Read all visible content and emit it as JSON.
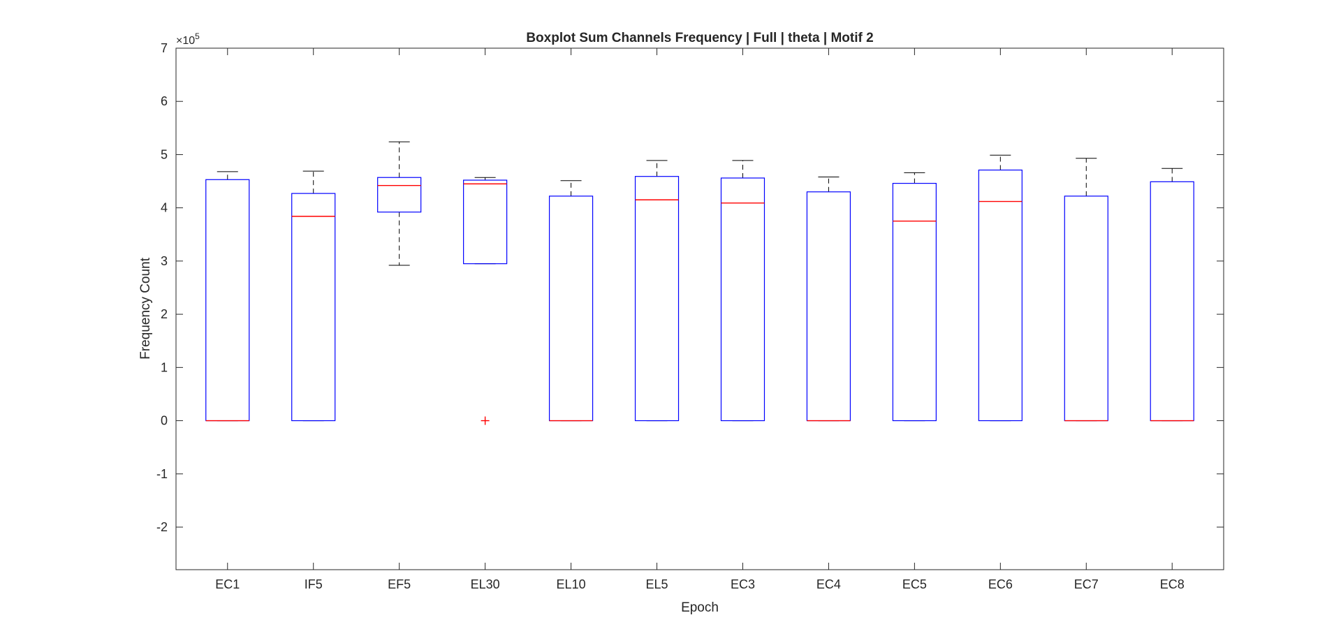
{
  "chart_data": {
    "type": "boxplot",
    "title": "Boxplot Sum Channels Frequency | Full | theta | Motif 2",
    "xlabel": "Epoch",
    "ylabel": "Frequency Count",
    "exponent_label": "×10",
    "exponent_power": "5",
    "y_scale": 100000,
    "ylim": [
      -2.8,
      7
    ],
    "yticks": [
      -2,
      -1,
      0,
      1,
      2,
      3,
      4,
      5,
      6,
      7
    ],
    "ytick_labels": [
      "-2",
      "-1",
      "0",
      "1",
      "2",
      "3",
      "4",
      "5",
      "6",
      "7"
    ],
    "grid": false,
    "categories": [
      "EC1",
      "IF5",
      "EF5",
      "EL30",
      "EL10",
      "EL5",
      "EC3",
      "EC4",
      "EC5",
      "EC6",
      "EC7",
      "EC8"
    ],
    "boxes": [
      {
        "q1": 0,
        "median": 0,
        "q3": 4.53,
        "whisker_low": 0,
        "whisker_high": 4.68,
        "outliers": []
      },
      {
        "q1": 0,
        "median": 3.84,
        "q3": 4.27,
        "whisker_low": 0,
        "whisker_high": 4.69,
        "outliers": []
      },
      {
        "q1": 3.92,
        "median": 4.42,
        "q3": 4.57,
        "whisker_low": 2.92,
        "whisker_high": 5.24,
        "outliers": []
      },
      {
        "q1": 2.95,
        "median": 4.45,
        "q3": 4.52,
        "whisker_low": 2.95,
        "whisker_high": 4.57,
        "outliers": [
          0
        ]
      },
      {
        "q1": 0,
        "median": 0,
        "q3": 4.22,
        "whisker_low": 0,
        "whisker_high": 4.51,
        "outliers": []
      },
      {
        "q1": 0,
        "median": 4.15,
        "q3": 4.59,
        "whisker_low": 0,
        "whisker_high": 4.89,
        "outliers": []
      },
      {
        "q1": 0,
        "median": 4.09,
        "q3": 4.56,
        "whisker_low": 0,
        "whisker_high": 4.89,
        "outliers": []
      },
      {
        "q1": 0,
        "median": 0,
        "q3": 4.3,
        "whisker_low": 0,
        "whisker_high": 4.58,
        "outliers": []
      },
      {
        "q1": 0,
        "median": 3.75,
        "q3": 4.46,
        "whisker_low": 0,
        "whisker_high": 4.66,
        "outliers": []
      },
      {
        "q1": 0,
        "median": 4.12,
        "q3": 4.71,
        "whisker_low": 0,
        "whisker_high": 4.99,
        "outliers": []
      },
      {
        "q1": 0,
        "median": 0,
        "q3": 4.22,
        "whisker_low": 0,
        "whisker_high": 4.93,
        "outliers": []
      },
      {
        "q1": 0,
        "median": 0,
        "q3": 4.49,
        "whisker_low": 0,
        "whisker_high": 4.74,
        "outliers": []
      }
    ],
    "colors": {
      "box": "#0000ff",
      "median": "#ff0000",
      "whisker": "#000000",
      "outlier": "#ff0000",
      "axis": "#262626"
    }
  }
}
